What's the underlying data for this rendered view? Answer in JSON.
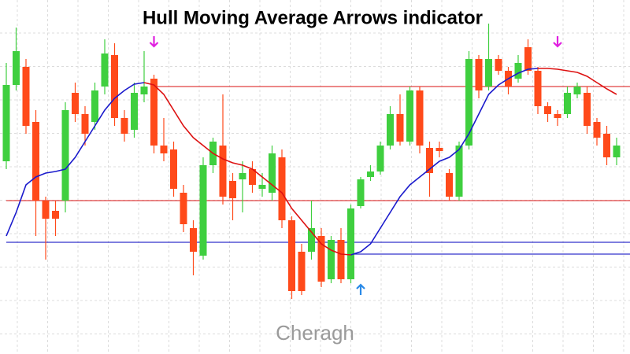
{
  "chart_data": {
    "type": "candlestick",
    "title": "Hull Moving Average Arrows indicator",
    "watermark": "Cheragh",
    "ylim": [
      0,
      450
    ],
    "grid": true,
    "up_color": "#3fcf3f",
    "down_color": "#ff4a1a",
    "open": [
      245,
      342,
      365,
      295,
      195,
      182,
      195,
      332,
      305,
      295,
      340,
      380,
      300,
      285,
      330,
      350,
      265,
      260,
      205,
      160,
      125,
      240,
      265,
      220,
      222,
      235,
      210,
      205,
      250,
      170,
      130,
      130,
      150,
      95,
      145,
      95,
      188,
      225,
      232,
      265,
      305,
      270,
      335,
      262,
      262,
      230,
      200,
      265,
      375,
      340,
      375,
      360,
      350,
      390,
      360,
      315,
      305,
      305,
      330,
      332,
      295,
      280,
      250
    ],
    "high": [
      370,
      415,
      375,
      310,
      200,
      195,
      320,
      345,
      315,
      345,
      400,
      395,
      310,
      345,
      385,
      355,
      300,
      270,
      215,
      170,
      250,
      275,
      330,
      230,
      245,
      245,
      230,
      265,
      260,
      175,
      140,
      195,
      160,
      150,
      160,
      190,
      225,
      240,
      270,
      315,
      330,
      340,
      340,
      270,
      270,
      235,
      270,
      385,
      380,
      420,
      380,
      365,
      380,
      400,
      365,
      320,
      310,
      340,
      345,
      340,
      300,
      290,
      275
    ],
    "low": [
      235,
      335,
      280,
      150,
      120,
      150,
      180,
      295,
      265,
      285,
      330,
      290,
      270,
      275,
      320,
      255,
      245,
      200,
      155,
      100,
      120,
      230,
      190,
      170,
      180,
      205,
      200,
      195,
      160,
      70,
      75,
      120,
      85,
      90,
      90,
      90,
      185,
      220,
      228,
      260,
      265,
      265,
      255,
      200,
      250,
      195,
      195,
      260,
      325,
      335,
      355,
      330,
      345,
      355,
      305,
      295,
      290,
      300,
      325,
      280,
      265,
      240,
      240
    ],
    "close": [
      342,
      385,
      290,
      195,
      172,
      172,
      310,
      305,
      280,
      335,
      382,
      300,
      280,
      332,
      340,
      265,
      255,
      210,
      165,
      130,
      240,
      270,
      200,
      198,
      230,
      215,
      215,
      255,
      170,
      80,
      80,
      160,
      92,
      145,
      95,
      185,
      222,
      232,
      265,
      305,
      270,
      335,
      265,
      230,
      258,
      200,
      265,
      375,
      335,
      375,
      360,
      340,
      370,
      360,
      315,
      305,
      300,
      332,
      340,
      290,
      275,
      250,
      265
    ],
    "hma": [
      {
        "color": "#1a1acc",
        "values": [
          150,
          180,
          215,
          225,
          230,
          232,
          235,
          250,
          270,
          290,
          310,
          325,
          335,
          343,
          345,
          null,
          null,
          null,
          null,
          null,
          null,
          null,
          null,
          null,
          null,
          null,
          null,
          null,
          null,
          null,
          null,
          null,
          null,
          null,
          null,
          126,
          130,
          140,
          160,
          180,
          200,
          215,
          225,
          235,
          245,
          250,
          260,
          280,
          305,
          330,
          342,
          350,
          357,
          362,
          363,
          null,
          null,
          null,
          null,
          null,
          null,
          null,
          null
        ]
      },
      {
        "color": "#dd1111",
        "values": [
          null,
          null,
          null,
          null,
          null,
          null,
          null,
          null,
          null,
          null,
          null,
          null,
          null,
          null,
          345,
          342,
          330,
          310,
          290,
          275,
          265,
          255,
          248,
          243,
          240,
          235,
          225,
          215,
          205,
          185,
          170,
          155,
          140,
          132,
          127,
          126,
          null,
          null,
          null,
          null,
          null,
          null,
          null,
          null,
          null,
          null,
          null,
          null,
          null,
          null,
          null,
          null,
          null,
          null,
          363,
          363,
          362,
          360,
          358,
          353,
          345,
          337,
          330
        ]
      }
    ],
    "levels": [
      {
        "value": 340,
        "color": "#e04040",
        "start": 15
      },
      {
        "value": 195,
        "color": "#e04040",
        "start": 0
      },
      {
        "value": 142,
        "color": "#3333cc",
        "start": 0
      },
      {
        "value": 127,
        "color": "#3333cc",
        "start": 35
      }
    ],
    "arrows": [
      {
        "index": 15,
        "direction": "down",
        "color": "#e020e0"
      },
      {
        "index": 56,
        "direction": "down",
        "color": "#e020e0"
      },
      {
        "index": 36,
        "direction": "up",
        "color": "#2a8ae8"
      }
    ]
  }
}
